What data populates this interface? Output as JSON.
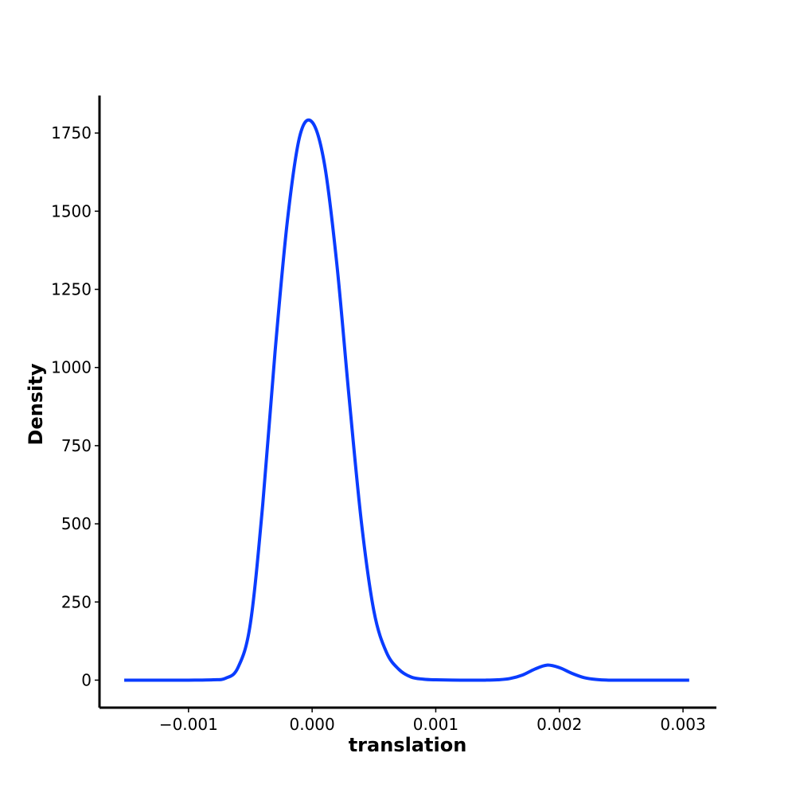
{
  "chart_data": {
    "type": "line",
    "title": "",
    "xlabel": "translation",
    "ylabel": "Density",
    "xlim": [
      -0.00172,
      0.00327
    ],
    "ylim": [
      -88,
      1870
    ],
    "xticks": [
      -0.001,
      0.0,
      0.001,
      0.002,
      0.003
    ],
    "xtick_labels": [
      "−0.001",
      "0.000",
      "0.001",
      "0.002",
      "0.003"
    ],
    "yticks": [
      0,
      250,
      500,
      750,
      1000,
      1250,
      1500,
      1750
    ],
    "ytick_labels": [
      "0",
      "250",
      "500",
      "750",
      "1000",
      "1250",
      "1500",
      "1750"
    ],
    "grid": false,
    "legend": "none",
    "series": [
      {
        "color": "#0a3cff",
        "x": [
          -0.00152,
          -0.0012,
          -0.001,
          -0.0008,
          -0.0007,
          -0.0006,
          -0.0005,
          -0.0004,
          -0.0003,
          -0.0002,
          -0.0001,
          0.0,
          0.0001,
          0.0002,
          0.0003,
          0.0004,
          0.0005,
          0.0006,
          0.0007,
          0.0008,
          0.0009,
          0.001,
          0.0012,
          0.0014,
          0.0015,
          0.0016,
          0.0017,
          0.0018,
          0.0019,
          0.002,
          0.0021,
          0.0022,
          0.0023,
          0.0024,
          0.0026,
          0.0028,
          0.00305
        ],
        "values": [
          0,
          0,
          0,
          1,
          6,
          40,
          180,
          560,
          1050,
          1470,
          1740,
          1785,
          1650,
          1330,
          900,
          500,
          220,
          90,
          35,
          10,
          3,
          1,
          0,
          0,
          1,
          5,
          16,
          35,
          48,
          40,
          22,
          8,
          2,
          0,
          0,
          0,
          0
        ]
      }
    ]
  }
}
